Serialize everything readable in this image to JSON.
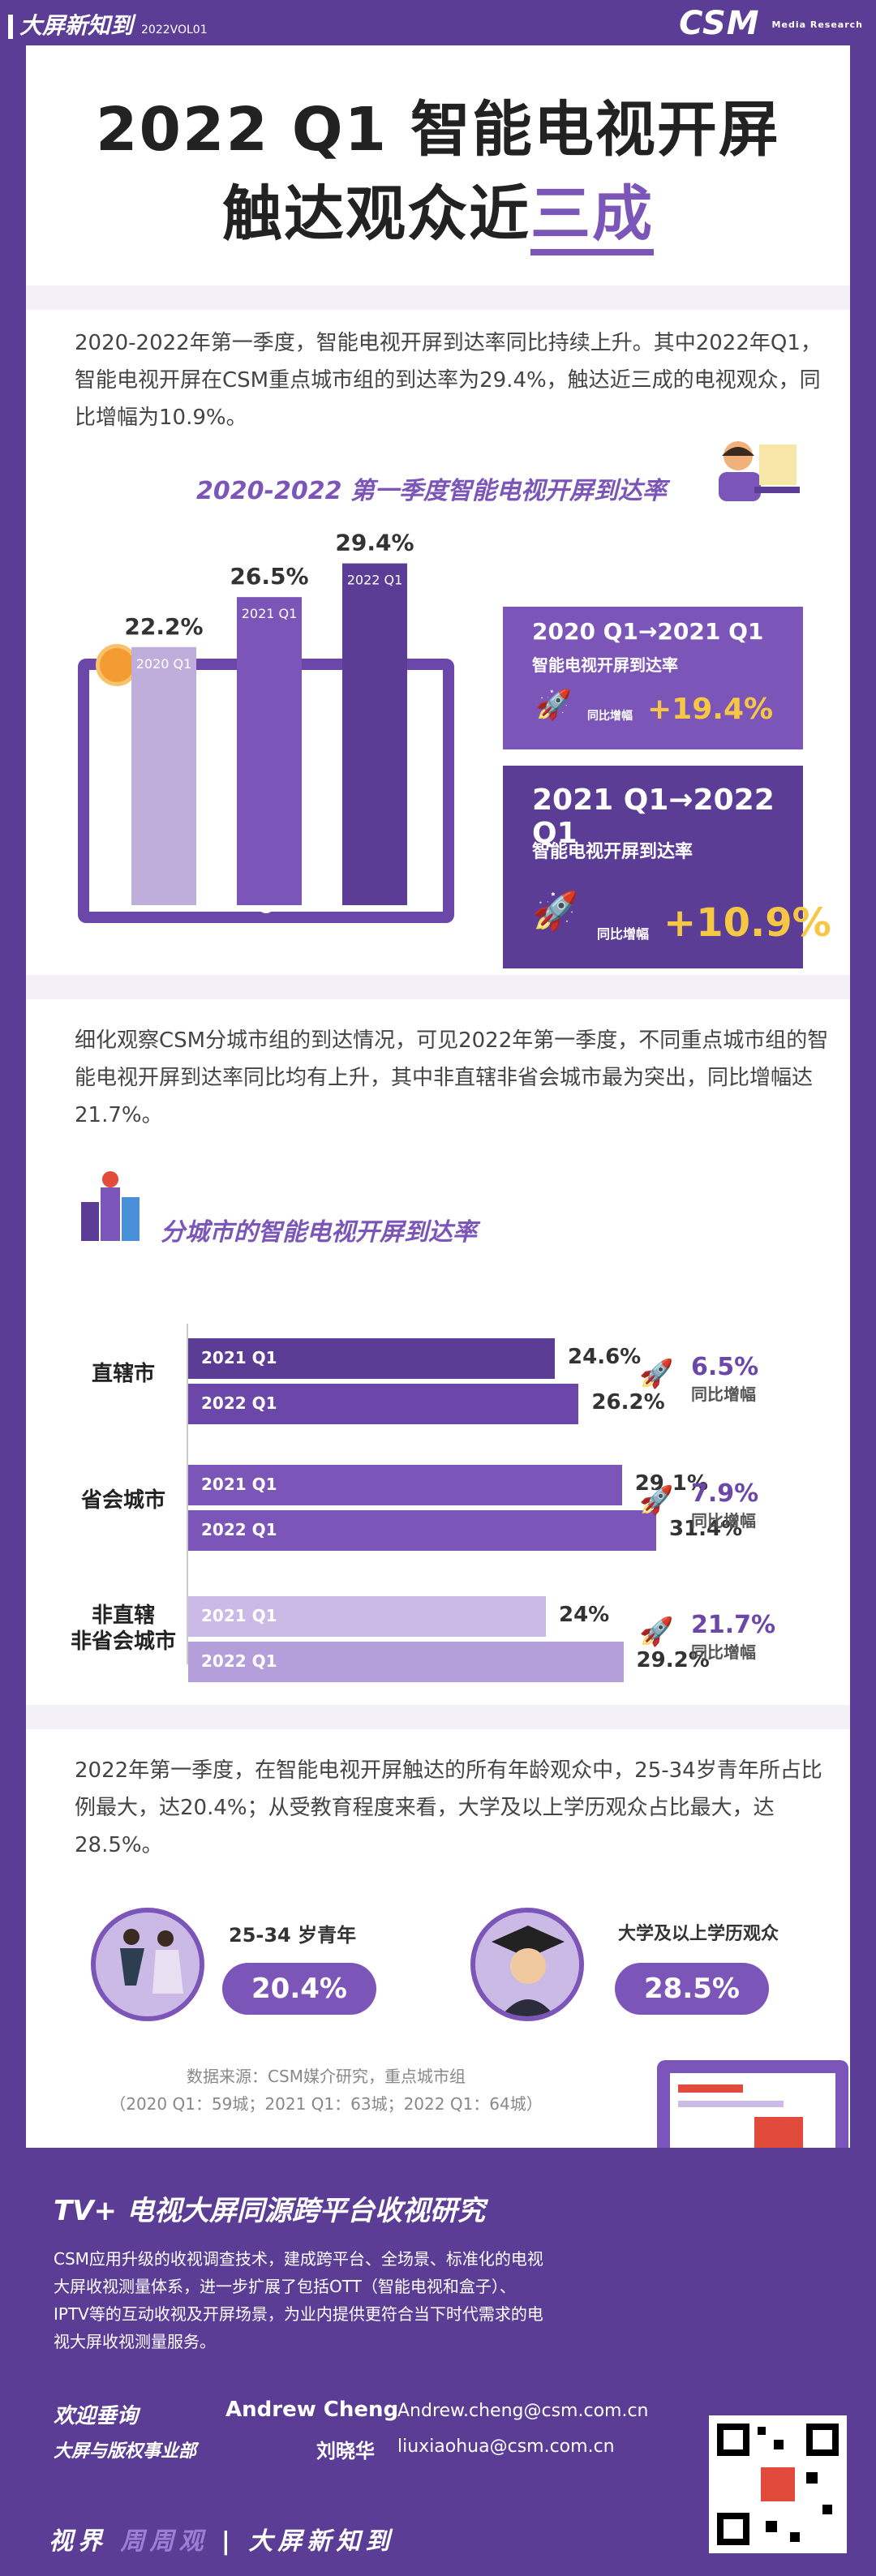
{
  "header": {
    "brand": "大屏新知到",
    "issue": "2022VOL01",
    "logo": "CSM",
    "logo_sub": "Media Research"
  },
  "title": {
    "line1": "2022 Q1 智能电视开屏",
    "line2_pre": "触达观众近",
    "line2_hl": "三成"
  },
  "intro": "2020-2022年第一季度，智能电视开屏到达率同比持续上升。其中2022年Q1，智能电视开屏在CSM重点城市组的到达率为29.4%，触达近三成的电视观众，同比增幅为10.9%。",
  "chart1_title": "2020-2022 第一季度智能电视开屏到达率",
  "chart_data": [
    {
      "type": "bar",
      "title": "2020-2022 第一季度智能电视开屏到达率",
      "categories": [
        "2020 Q1",
        "2021 Q1",
        "2022 Q1"
      ],
      "values": [
        22.2,
        26.5,
        29.4
      ],
      "value_labels": [
        "22.2%",
        "26.5%",
        "29.4%"
      ],
      "ylim": [
        0,
        30
      ]
    },
    {
      "type": "bar",
      "orientation": "horizontal",
      "title": "分城市的智能电视开屏到达率",
      "groups": [
        "直辖市",
        "省会城市",
        "非直辖\n非省会城市"
      ],
      "series": [
        {
          "name": "2021 Q1",
          "values": [
            24.6,
            29.1,
            24
          ]
        },
        {
          "name": "2022 Q1",
          "values": [
            26.2,
            31.4,
            29.2
          ]
        }
      ],
      "value_labels": [
        [
          "24.6%",
          "26.2%"
        ],
        [
          "29.1%",
          "31.4%"
        ],
        [
          "24%",
          "29.2%"
        ]
      ],
      "growth": [
        "6.5%",
        "7.9%",
        "21.7%"
      ],
      "growth_label": "同比增幅"
    }
  ],
  "box1": {
    "title": "2020 Q1→2021 Q1",
    "sub": "智能电视开屏到达率",
    "growth_label": "同比增幅",
    "value": "+19.4%"
  },
  "box2": {
    "title": "2021 Q1→2022 Q1",
    "sub": "智能电视开屏到达率",
    "growth_label": "同比增幅",
    "value": "+10.9%"
  },
  "para2": "细化观察CSM分城市组的到达情况，可见2022年第一季度，不同重点城市组的智能电视开屏到达率同比均有上升，其中非直辖非省会城市最为突出，同比增幅达21.7%。",
  "chart2_title": "分城市的智能电视开屏到达率",
  "para3": "2022年第一季度，在智能电视开屏触达的所有年龄观众中，25-34岁青年所占比例最大，达20.4%；从受教育程度来看，大学及以上学历观众占比最大，达28.5%。",
  "stat_age": {
    "label": "25-34 岁青年",
    "value": "20.4%"
  },
  "stat_edu": {
    "label": "大学及以上学历观众",
    "value": "28.5%"
  },
  "source1": "数据来源：CSM媒介研究，重点城市组",
  "source2": "（2020 Q1：59城；2021 Q1：63城；2022 Q1：64城）",
  "footer": {
    "title": "TV+ 电视大屏同源跨平台收视研究",
    "desc": "CSM应用升级的收视调查技术，建成跨平台、全场景、标准化的电视大屏收视测量体系，进一步扩展了包括OTT（智能电视和盒子）、IPTV等的互动收视及开屏场景，为业内提供更符合当下时代需求的电视大屏收视测量服务。",
    "welcome": "欢迎垂询",
    "dept": "大屏与版权事业部",
    "c1_name": "Andrew Cheng",
    "c1_mail": "Andrew.cheng@csm.com.cn",
    "c2_name": "刘晓华",
    "c2_mail": "liuxiaohua@csm.com.cn",
    "slogan_a": "视界",
    "slogan_b": "周周观",
    "slogan_c": "大屏新知到"
  }
}
